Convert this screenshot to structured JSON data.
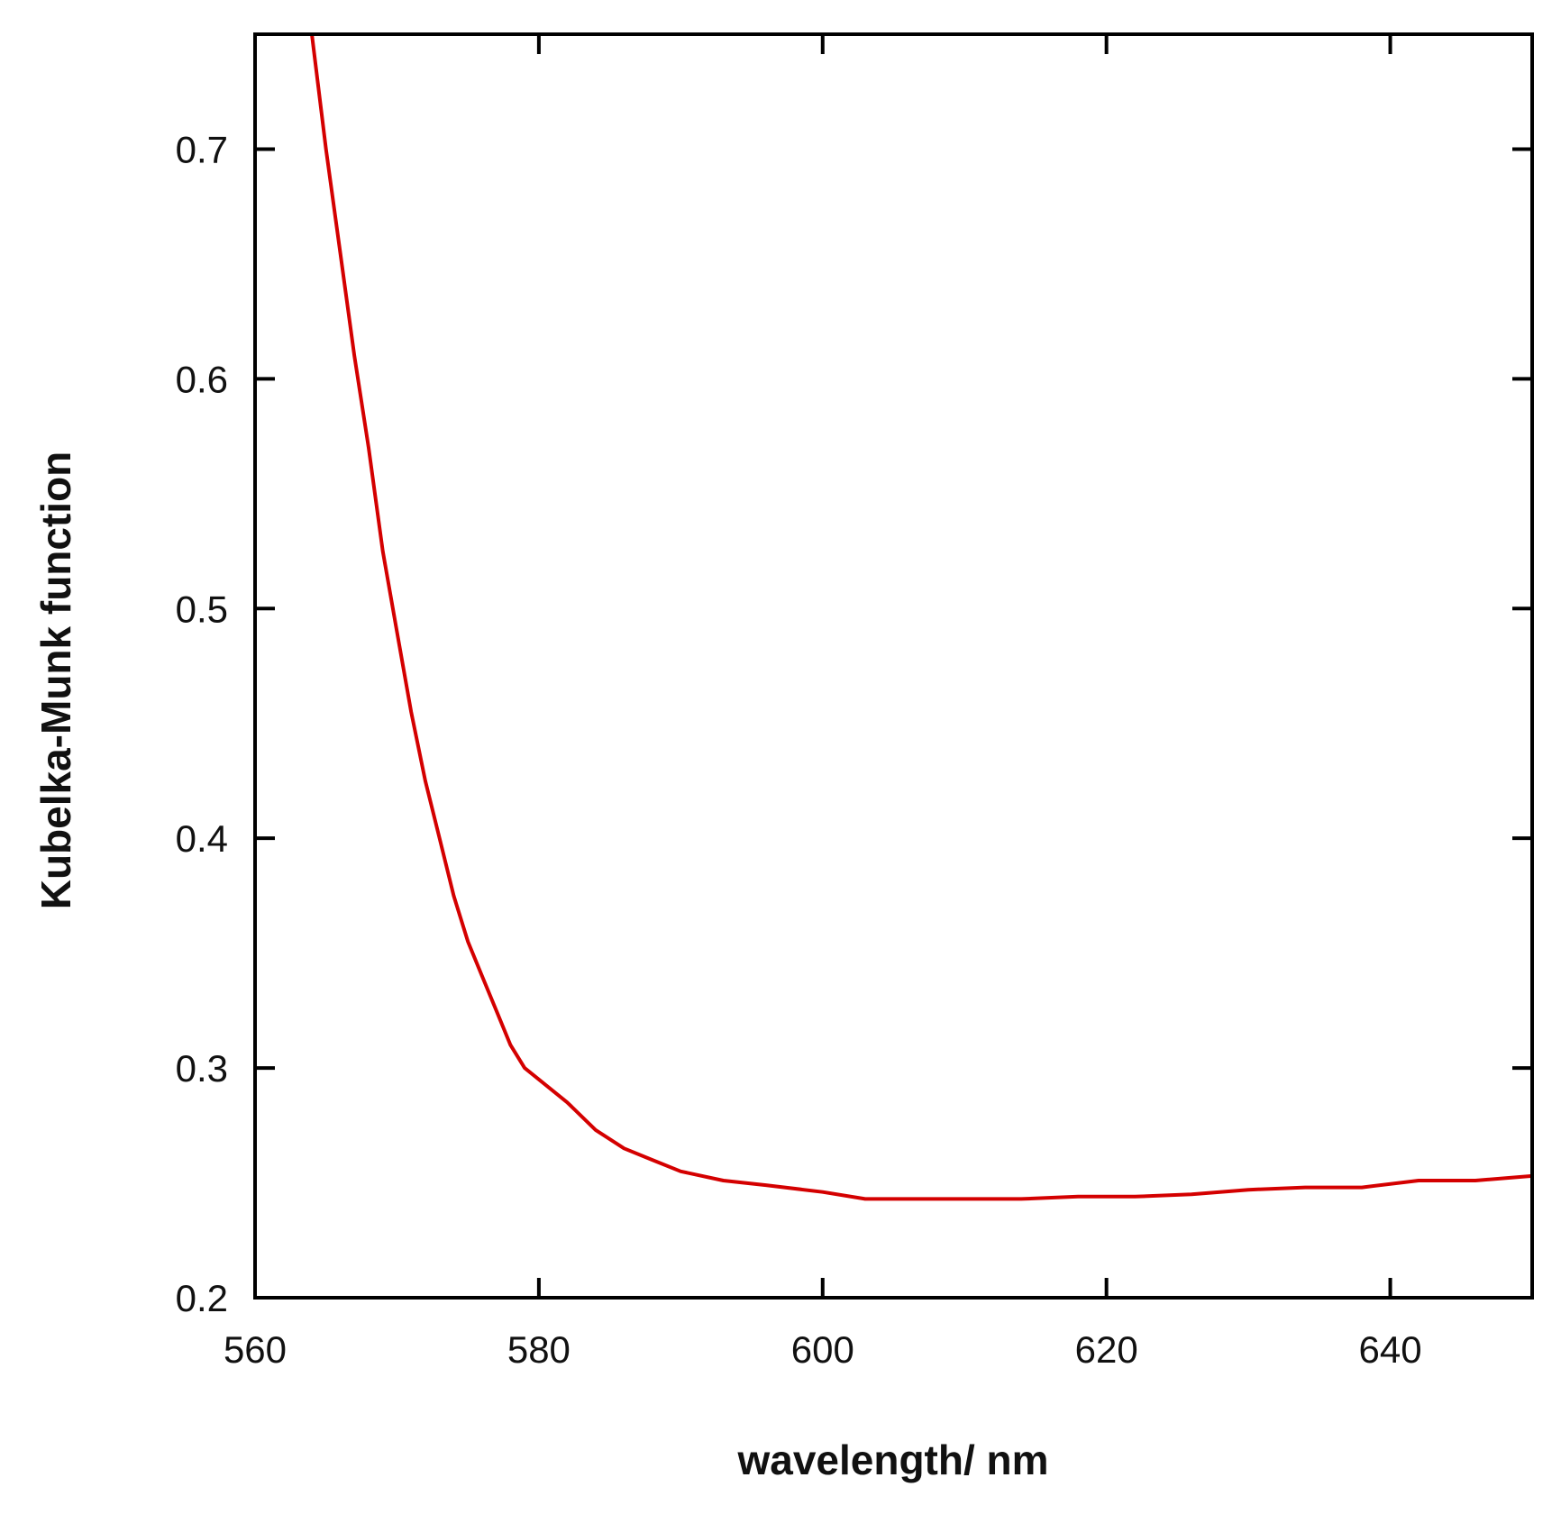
{
  "chart_data": {
    "type": "line",
    "x_label": "wavelength/ nm",
    "y_label": "Kubelka-Munk function",
    "xlim": [
      560,
      650
    ],
    "xticks": [
      560,
      580,
      600,
      620,
      640
    ],
    "ylim": [
      0.2,
      0.75
    ],
    "yticks": [
      0.2,
      0.3,
      0.4,
      0.5,
      0.6,
      0.7
    ],
    "series": [
      {
        "color": "#d40000",
        "x": [
          564,
          565,
          566,
          567,
          568,
          569,
          570,
          571,
          572,
          573,
          574,
          575,
          576,
          577,
          578,
          579,
          580,
          582,
          584,
          586,
          588,
          590,
          593,
          596,
          600,
          603,
          606,
          610,
          614,
          618,
          622,
          626,
          630,
          634,
          638,
          642,
          646,
          650
        ],
        "values": [
          0.75,
          0.7,
          0.655,
          0.61,
          0.57,
          0.525,
          0.49,
          0.455,
          0.425,
          0.4,
          0.375,
          0.355,
          0.34,
          0.325,
          0.31,
          0.3,
          0.295,
          0.285,
          0.273,
          0.265,
          0.26,
          0.255,
          0.251,
          0.249,
          0.246,
          0.243,
          0.243,
          0.243,
          0.243,
          0.244,
          0.244,
          0.245,
          0.247,
          0.248,
          0.248,
          0.251,
          0.251,
          0.253
        ]
      }
    ]
  }
}
